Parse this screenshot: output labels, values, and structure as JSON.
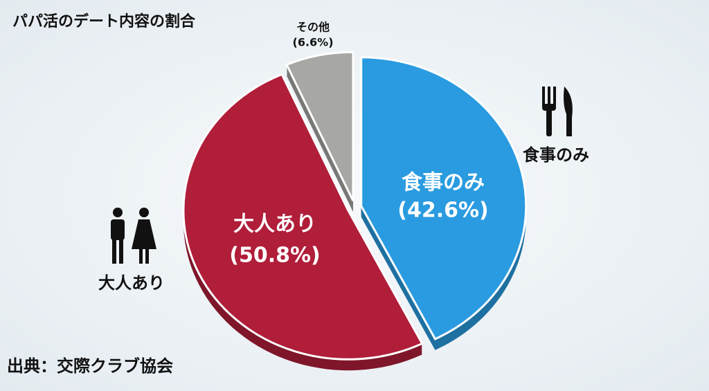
{
  "chart_data": {
    "type": "pie",
    "title": "パパ活のデート内容の割合",
    "categories": [
      "食事のみ",
      "大人あり",
      "その他"
    ],
    "values": [
      42.6,
      50.8,
      6.6
    ],
    "value_labels": [
      "(42.6%)",
      "(50.8%)",
      "(6.6%)"
    ],
    "colors": [
      "#2a9be0",
      "#b01e3a",
      "#a7a7a4"
    ],
    "source": "出典：交際クラブ協会"
  }
}
